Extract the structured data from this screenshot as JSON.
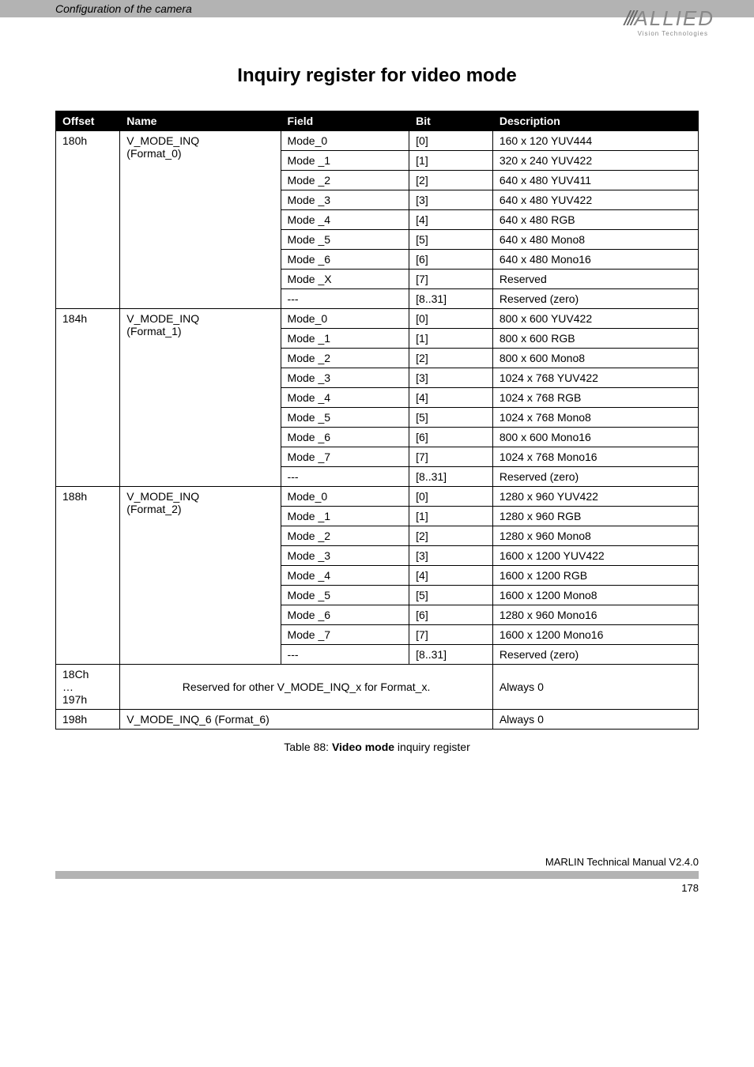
{
  "header": {
    "title": "Configuration of the camera"
  },
  "logo": {
    "slashes": "///",
    "text": "ALLIED",
    "sub": "Vision Technologies"
  },
  "heading": "Inquiry register for video mode",
  "columns": [
    "Offset",
    "Name",
    "Field",
    "Bit",
    "Description"
  ],
  "groups": [
    {
      "offset": "180h",
      "name_lines": [
        "V_MODE_INQ",
        "(Format_0)"
      ],
      "rows": [
        {
          "field": "Mode_0",
          "bit": "[0]",
          "desc": "160 x 120 YUV444"
        },
        {
          "field": "Mode _1",
          "bit": "[1]",
          "desc": "320 x 240 YUV422"
        },
        {
          "field": "Mode _2",
          "bit": "[2]",
          "desc": "640 x 480 YUV411"
        },
        {
          "field": "Mode _3",
          "bit": "[3]",
          "desc": "640 x 480 YUV422"
        },
        {
          "field": "Mode _4",
          "bit": "[4]",
          "desc": "640 x 480 RGB"
        },
        {
          "field": "Mode _5",
          "bit": "[5]",
          "desc": "640 x 480 Mono8"
        },
        {
          "field": "Mode _6",
          "bit": "[6]",
          "desc": "640 x 480 Mono16"
        },
        {
          "field": "Mode _X",
          "bit": "[7]",
          "desc": "Reserved"
        },
        {
          "field": "---",
          "bit": "[8..31]",
          "desc": "Reserved (zero)"
        }
      ]
    },
    {
      "offset": "184h",
      "name_lines": [
        "V_MODE_INQ",
        "(Format_1)"
      ],
      "rows": [
        {
          "field": "Mode_0",
          "bit": "[0]",
          "desc": "800 x 600 YUV422"
        },
        {
          "field": "Mode _1",
          "bit": "[1]",
          "desc": "800 x 600  RGB"
        },
        {
          "field": "Mode _2",
          "bit": "[2]",
          "desc": "800 x 600 Mono8"
        },
        {
          "field": "Mode _3",
          "bit": "[3]",
          "desc": "1024 x 768 YUV422"
        },
        {
          "field": "Mode _4",
          "bit": "[4]",
          "desc": "1024 x 768 RGB"
        },
        {
          "field": "Mode _5",
          "bit": "[5]",
          "desc": "1024 x 768 Mono8"
        },
        {
          "field": "Mode _6",
          "bit": "[6]",
          "desc": "800 x 600 Mono16"
        },
        {
          "field": "Mode _7",
          "bit": "[7]",
          "desc": "1024 x 768 Mono16"
        },
        {
          "field": "---",
          "bit": "[8..31]",
          "desc": "Reserved (zero)"
        }
      ]
    },
    {
      "offset": "188h",
      "name_lines": [
        "V_MODE_INQ",
        "(Format_2)"
      ],
      "rows": [
        {
          "field": "Mode_0",
          "bit": "[0]",
          "desc": "1280 x 960 YUV422"
        },
        {
          "field": "Mode _1",
          "bit": "[1]",
          "desc": "1280 x 960 RGB"
        },
        {
          "field": "Mode _2",
          "bit": "[2]",
          "desc": "1280 x 960 Mono8"
        },
        {
          "field": "Mode _3",
          "bit": "[3]",
          "desc": "1600 x 1200 YUV422"
        },
        {
          "field": "Mode _4",
          "bit": "[4]",
          "desc": "1600 x 1200 RGB"
        },
        {
          "field": "Mode _5",
          "bit": "[5]",
          "desc": "1600 x 1200 Mono8"
        },
        {
          "field": "Mode _6",
          "bit": "[6]",
          "desc": "1280 x 960 Mono16"
        },
        {
          "field": "Mode _7",
          "bit": "[7]",
          "desc": "1600 x 1200 Mono16"
        },
        {
          "field": "---",
          "bit": "[8..31]",
          "desc": "Reserved (zero)"
        }
      ]
    }
  ],
  "tail_rows": [
    {
      "offset_lines": [
        "18Ch",
        "…",
        "197h"
      ],
      "span_text": "Reserved for other V_MODE_INQ_x for Format_x.",
      "desc": "Always 0"
    },
    {
      "offset_lines": [
        "198h"
      ],
      "span_text": "V_MODE_INQ_6 (Format_6)",
      "desc": "Always 0"
    }
  ],
  "caption_prefix": "Table 88: ",
  "caption_bold": "Video mode",
  "caption_suffix": " inquiry register",
  "footer_text": "MARLIN Technical Manual V2.4.0",
  "page_number": "178"
}
